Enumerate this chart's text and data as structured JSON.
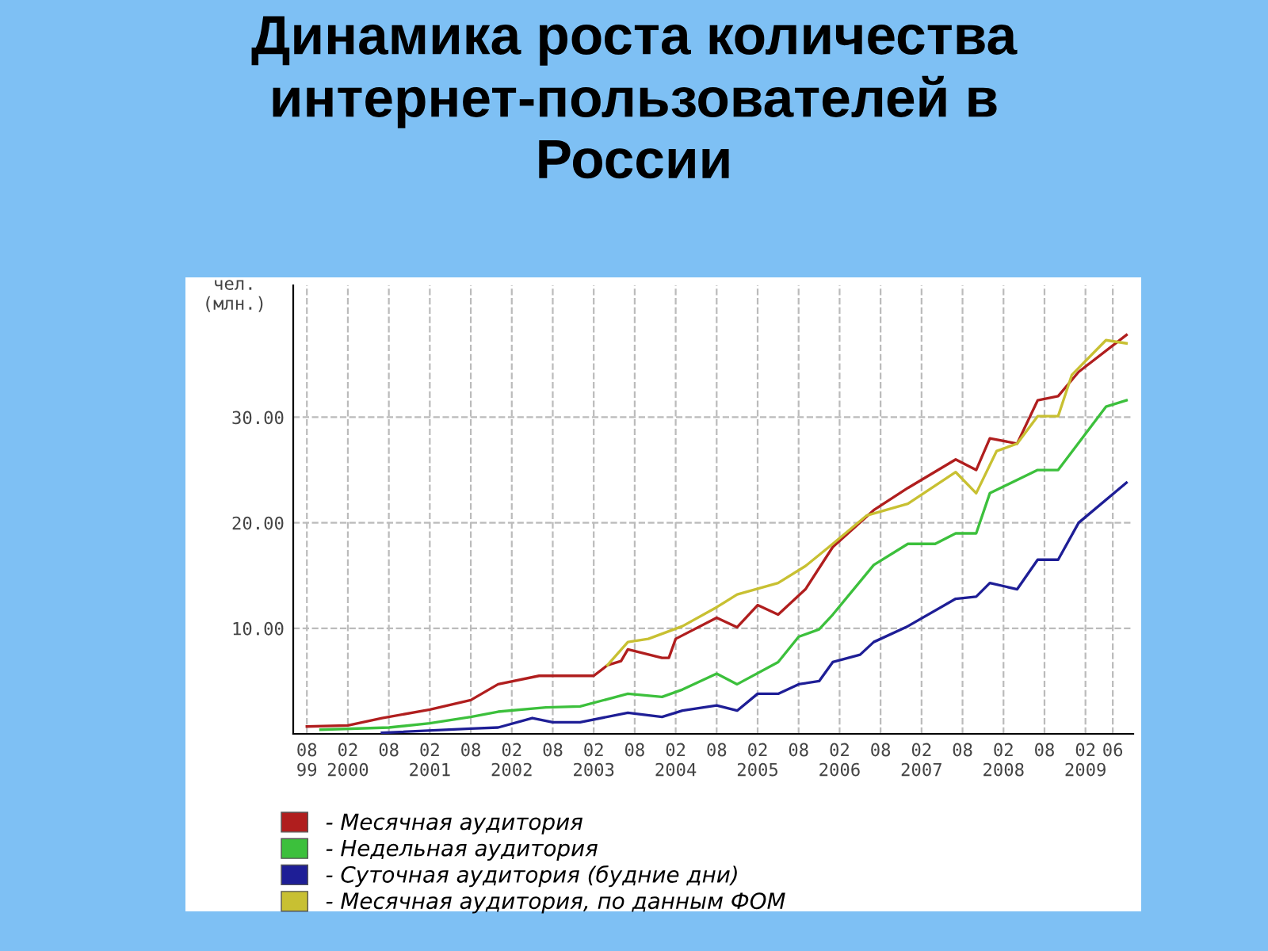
{
  "chart_data": {
    "type": "line",
    "title": "Динамика роста количества\nинтернет-пользователей в\nРоссии",
    "ylabel": "чел.\n(млн.)",
    "xlim": [
      "1999-06",
      "2009-09"
    ],
    "ylim": [
      0,
      42.5
    ],
    "xticks": [
      {
        "value": "1999-08",
        "label": "08\n99"
      },
      {
        "value": "2000-02",
        "label": "02\n2000"
      },
      {
        "value": "2000-08",
        "label": "08"
      },
      {
        "value": "2001-02",
        "label": "02\n2001"
      },
      {
        "value": "2001-08",
        "label": "08"
      },
      {
        "value": "2002-02",
        "label": "02\n2002"
      },
      {
        "value": "2002-08",
        "label": "08"
      },
      {
        "value": "2003-02",
        "label": "02\n2003"
      },
      {
        "value": "2003-08",
        "label": "08"
      },
      {
        "value": "2004-02",
        "label": "02\n2004"
      },
      {
        "value": "2004-08",
        "label": "08"
      },
      {
        "value": "2005-02",
        "label": "02\n2005"
      },
      {
        "value": "2005-08",
        "label": "08"
      },
      {
        "value": "2006-02",
        "label": "02\n2006"
      },
      {
        "value": "2006-08",
        "label": "08"
      },
      {
        "value": "2007-02",
        "label": "02\n2007"
      },
      {
        "value": "2007-08",
        "label": "08"
      },
      {
        "value": "2008-02",
        "label": "02\n2008"
      },
      {
        "value": "2008-08",
        "label": "08"
      },
      {
        "value": "2009-02",
        "label": "02\n2009"
      },
      {
        "value": "2009-06",
        "label": "06"
      }
    ],
    "yticks": [
      {
        "value": 10,
        "label": "10.00"
      },
      {
        "value": 20,
        "label": "20.00"
      },
      {
        "value": 30,
        "label": "30.00"
      }
    ],
    "grid": true,
    "legend": "bottom",
    "marker": "none",
    "line_style": "solid",
    "series": [
      {
        "name": "- Месячная аудитория",
        "color": "#b01e1e",
        "x": [
          "1999-08",
          "2000-02",
          "2000-07",
          "2001-02",
          "2001-08",
          "2001-12",
          "2002-06",
          "2003-02",
          "2003-04",
          "2003-06",
          "2003-07",
          "2003-12",
          "2004-01",
          "2004-02",
          "2004-08",
          "2004-11",
          "2005-02",
          "2005-05",
          "2005-09",
          "2006-01",
          "2006-07",
          "2006-12",
          "2007-07",
          "2007-10",
          "2007-12",
          "2008-04",
          "2008-07",
          "2008-10",
          "2009-01",
          "2009-08"
        ],
        "values": [
          0.7,
          0.8,
          1.5,
          2.3,
          3.2,
          4.7,
          5.5,
          5.5,
          6.5,
          6.9,
          8.0,
          7.2,
          7.2,
          9.0,
          11.0,
          10.1,
          12.2,
          11.3,
          13.7,
          17.7,
          21.2,
          23.3,
          26.0,
          25.0,
          28.0,
          27.5,
          31.6,
          32.0,
          34.3,
          37.8
        ]
      },
      {
        "name": "- Недельная аудитория",
        "color": "#3cc03c",
        "x": [
          "1999-10",
          "2000-08",
          "2001-02",
          "2001-08",
          "2001-12",
          "2002-07",
          "2002-12",
          "2003-07",
          "2003-12",
          "2004-03",
          "2004-08",
          "2004-11",
          "2005-05",
          "2005-08",
          "2005-11",
          "2006-01",
          "2006-07",
          "2006-12",
          "2007-04",
          "2007-07",
          "2007-10",
          "2007-12",
          "2008-07",
          "2008-10",
          "2009-05",
          "2009-08"
        ],
        "values": [
          0.4,
          0.6,
          1.0,
          1.6,
          2.1,
          2.5,
          2.6,
          3.8,
          3.5,
          4.2,
          5.7,
          4.7,
          6.8,
          9.2,
          9.9,
          11.3,
          16.0,
          18.0,
          18.0,
          19.0,
          19.0,
          22.8,
          25.0,
          25.0,
          31.0,
          31.6
        ]
      },
      {
        "name": "- Суточная аудитория (будние дни)",
        "color": "#1e1e96",
        "x": [
          "2000-07",
          "2001-08",
          "2001-12",
          "2002-05",
          "2002-08",
          "2002-12",
          "2003-07",
          "2003-12",
          "2004-03",
          "2004-08",
          "2004-11",
          "2005-02",
          "2005-05",
          "2005-08",
          "2005-11",
          "2006-01",
          "2006-05",
          "2006-07",
          "2006-12",
          "2007-07",
          "2007-10",
          "2007-12",
          "2008-04",
          "2008-07",
          "2008-10",
          "2009-01",
          "2009-08"
        ],
        "values": [
          0.1,
          0.5,
          0.6,
          1.5,
          1.1,
          1.1,
          2.0,
          1.6,
          2.2,
          2.7,
          2.2,
          3.8,
          3.8,
          4.7,
          5.0,
          6.8,
          7.5,
          8.7,
          10.2,
          12.8,
          13.0,
          14.3,
          13.7,
          16.5,
          16.5,
          20.0,
          23.8
        ]
      },
      {
        "name": "- Месячная аудитория, по данным ФОМ",
        "color": "#c8c032",
        "x": [
          "2003-04",
          "2003-07",
          "2003-10",
          "2004-03",
          "2004-08",
          "2004-11",
          "2005-05",
          "2005-09",
          "2006-01",
          "2006-06",
          "2006-12",
          "2007-07",
          "2007-10",
          "2008-01",
          "2008-04",
          "2008-07",
          "2008-10",
          "2008-12",
          "2009-05",
          "2009-08"
        ],
        "values": [
          6.5,
          8.7,
          9.0,
          10.2,
          12.0,
          13.2,
          14.3,
          15.9,
          18.0,
          20.7,
          21.8,
          24.8,
          22.8,
          26.8,
          27.5,
          30.1,
          30.1,
          34.0,
          37.3,
          37.0
        ]
      }
    ]
  }
}
